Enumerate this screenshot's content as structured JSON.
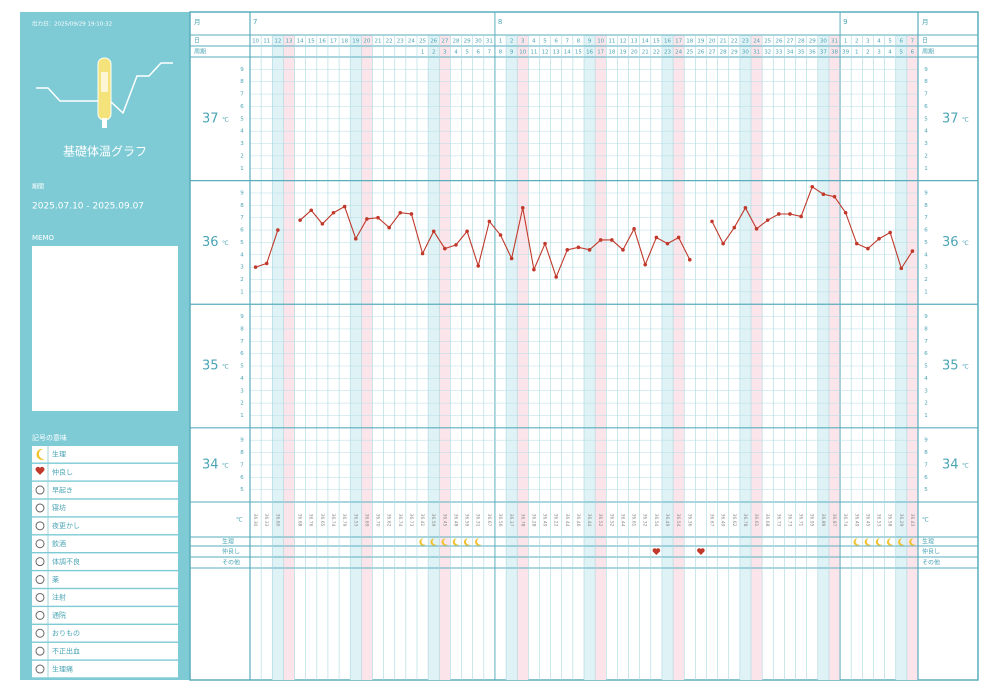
{
  "header": {
    "output_date": "出力日：2025/09/29 19:10:32",
    "title": "基礎体温グラフ",
    "period_label": "期間",
    "period": "2025.07.10 - 2025.09.07",
    "memo_label": "MEMO",
    "legend_title": "記号の意味",
    "legend": [
      "生理",
      "仲良し",
      "早起き",
      "寝坊",
      "夜更かし",
      "飲酒",
      "体調不良",
      "薬",
      "注射",
      "通院",
      "おりもの",
      "不正出血",
      "生理痛"
    ]
  },
  "chart_data": {
    "type": "line",
    "row_labels": {
      "month": "月",
      "day": "日",
      "cycle": "周期",
      "temp": "℃",
      "period": "生理",
      "sex": "仲良し",
      "other": "その他"
    },
    "unit": "℃",
    "month_labels": [
      "7",
      null,
      null,
      null,
      null,
      null,
      null,
      null,
      null,
      null,
      null,
      null,
      null,
      null,
      null,
      null,
      null,
      null,
      null,
      null,
      null,
      null,
      "8",
      null,
      null,
      null,
      null,
      null,
      null,
      null,
      null,
      null,
      null,
      null,
      null,
      null,
      null,
      null,
      null,
      null,
      null,
      null,
      null,
      null,
      null,
      null,
      null,
      null,
      null,
      null,
      null,
      null,
      null,
      "9",
      null,
      null,
      null,
      null,
      null,
      null
    ],
    "x": [
      10,
      11,
      12,
      13,
      14,
      15,
      16,
      17,
      18,
      19,
      20,
      21,
      22,
      23,
      24,
      25,
      26,
      27,
      28,
      29,
      30,
      31,
      1,
      2,
      3,
      4,
      5,
      6,
      7,
      8,
      9,
      10,
      11,
      12,
      13,
      14,
      15,
      16,
      17,
      18,
      19,
      20,
      21,
      22,
      23,
      24,
      25,
      26,
      27,
      28,
      29,
      30,
      31,
      1,
      2,
      3,
      4,
      5,
      6,
      7
    ],
    "cycle_days": [
      null,
      null,
      null,
      null,
      null,
      null,
      null,
      null,
      null,
      null,
      null,
      null,
      null,
      null,
      null,
      1,
      2,
      3,
      4,
      5,
      6,
      7,
      8,
      9,
      10,
      11,
      12,
      13,
      14,
      15,
      16,
      17,
      18,
      19,
      20,
      21,
      22,
      23,
      24,
      25,
      26,
      27,
      28,
      29,
      30,
      31,
      32,
      33,
      34,
      35,
      36,
      37,
      38,
      39,
      1,
      2,
      3,
      4,
      5,
      6
    ],
    "values": [
      36.3,
      36.33,
      36.6,
      null,
      36.68,
      36.76,
      36.65,
      36.74,
      36.79,
      36.53,
      36.69,
      36.7,
      36.62,
      36.74,
      36.73,
      36.41,
      36.59,
      36.45,
      36.48,
      36.59,
      36.31,
      36.67,
      36.56,
      36.37,
      36.78,
      36.28,
      36.49,
      36.22,
      36.44,
      36.46,
      36.44,
      36.52,
      36.52,
      36.44,
      36.61,
      36.32,
      36.54,
      36.49,
      36.54,
      36.36,
      null,
      36.67,
      36.49,
      36.62,
      36.78,
      36.61,
      36.68,
      36.73,
      36.73,
      36.71,
      36.95,
      36.89,
      36.87,
      36.74,
      36.49,
      36.45,
      36.53,
      36.58,
      36.29,
      36.43
    ],
    "value_labels": [
      "36.30",
      "36.33",
      "36.60",
      null,
      "36.68",
      "36.76",
      "36.65",
      "36.74",
      "36.79",
      "36.53",
      "36.69",
      "36.70",
      "36.62",
      "36.74",
      "36.73",
      "36.41",
      "36.59",
      "36.45",
      "36.48",
      "36.59",
      "36.31",
      "36.67",
      "36.56",
      "36.37",
      "36.78",
      "36.28",
      "36.49",
      "36.22",
      "36.44",
      "36.46",
      "36.44",
      "36.52",
      "36.52",
      "36.44",
      "36.61",
      "36.32",
      "36.54",
      "36.49",
      "36.54",
      "36.36",
      null,
      "36.67",
      "36.49",
      "36.62",
      "36.78",
      "36.61",
      "36.68",
      "36.73",
      "36.73",
      "36.71",
      "36.95",
      "36.89",
      "36.87",
      "36.74",
      "36.49",
      "36.45",
      "36.53",
      "36.58",
      "36.29",
      "36.43"
    ],
    "period_marks": [
      0,
      0,
      0,
      0,
      0,
      0,
      0,
      0,
      0,
      0,
      0,
      0,
      0,
      0,
      0,
      1,
      1,
      1,
      1,
      1,
      1,
      0,
      0,
      0,
      0,
      0,
      0,
      0,
      0,
      0,
      0,
      0,
      0,
      0,
      0,
      0,
      0,
      0,
      0,
      0,
      0,
      0,
      0,
      0,
      0,
      0,
      0,
      0,
      0,
      0,
      0,
      0,
      0,
      0,
      1,
      1,
      1,
      1,
      1,
      1
    ],
    "sex_marks": [
      0,
      0,
      0,
      0,
      0,
      0,
      0,
      0,
      0,
      0,
      0,
      0,
      0,
      0,
      0,
      0,
      0,
      0,
      0,
      0,
      0,
      0,
      0,
      0,
      0,
      0,
      0,
      0,
      0,
      0,
      0,
      0,
      0,
      0,
      0,
      0,
      1,
      0,
      0,
      0,
      1,
      0,
      0,
      0,
      0,
      0,
      0,
      0,
      0,
      0,
      0,
      0,
      0,
      0,
      0,
      0,
      0,
      0,
      0,
      0
    ],
    "ylim": [
      34.4,
      38.0
    ],
    "yticks": [
      34,
      35,
      36,
      37
    ],
    "yminor": [
      {
        "value": 37.9,
        "label": "9"
      },
      {
        "value": 37.8,
        "label": "8"
      },
      {
        "value": 37.7,
        "label": "7"
      },
      {
        "value": 37.6,
        "label": "6"
      },
      {
        "value": 37.5,
        "label": "5"
      },
      {
        "value": 37.4,
        "label": "4"
      },
      {
        "value": 37.3,
        "label": "3"
      },
      {
        "value": 37.2,
        "label": "2"
      },
      {
        "value": 37.1,
        "label": "1"
      },
      {
        "value": 36.9,
        "label": "9"
      },
      {
        "value": 36.8,
        "label": "8"
      },
      {
        "value": 36.7,
        "label": "7"
      },
      {
        "value": 36.6,
        "label": "6"
      },
      {
        "value": 36.5,
        "label": "5"
      },
      {
        "value": 36.4,
        "label": "4"
      },
      {
        "value": 36.3,
        "label": "3"
      },
      {
        "value": 36.2,
        "label": "2"
      },
      {
        "value": 36.1,
        "label": "1"
      },
      {
        "value": 35.9,
        "label": "9"
      },
      {
        "value": 35.8,
        "label": "8"
      },
      {
        "value": 35.7,
        "label": "7"
      },
      {
        "value": 35.6,
        "label": "6"
      },
      {
        "value": 35.5,
        "label": "5"
      },
      {
        "value": 35.4,
        "label": "4"
      },
      {
        "value": 35.3,
        "label": "3"
      },
      {
        "value": 35.2,
        "label": "2"
      },
      {
        "value": 35.1,
        "label": "1"
      },
      {
        "value": 34.9,
        "label": "9"
      },
      {
        "value": 34.8,
        "label": "8"
      },
      {
        "value": 34.7,
        "label": "7"
      },
      {
        "value": 34.6,
        "label": "6"
      },
      {
        "value": 34.5,
        "label": "5"
      }
    ],
    "color": "#c0392b",
    "saturday_color": "#dff2f6",
    "sunday_color": "#fbe5ea"
  }
}
